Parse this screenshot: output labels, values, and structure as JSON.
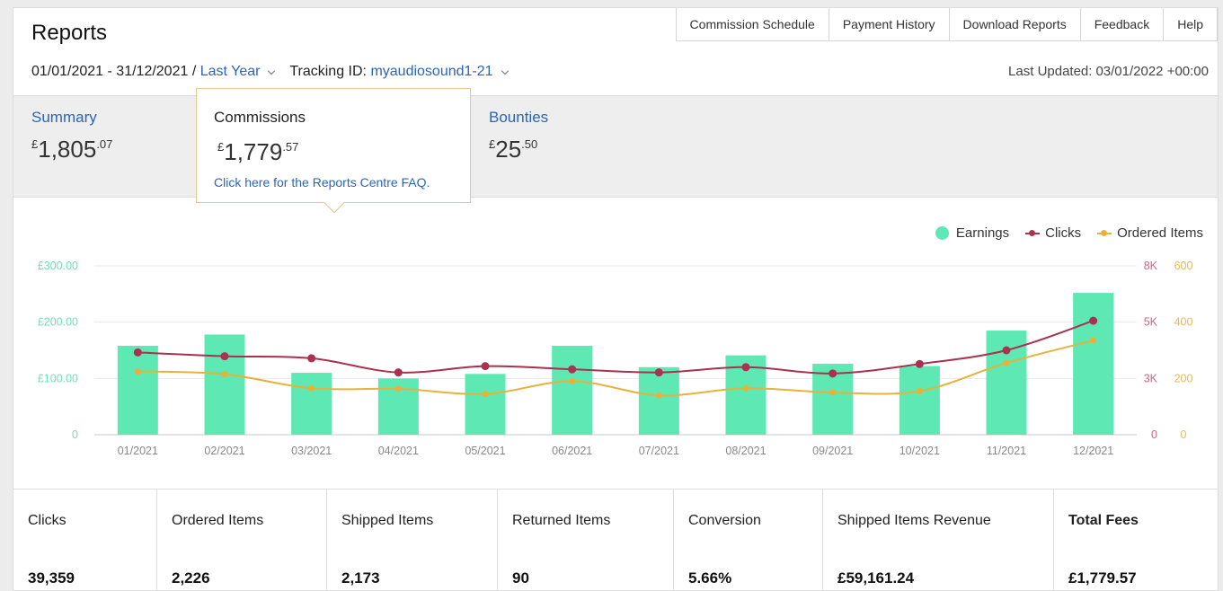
{
  "header": {
    "title": "Reports",
    "nav": [
      "Commission Schedule",
      "Payment History",
      "Download Reports",
      "Feedback",
      "Help"
    ],
    "date_range": "01/01/2021 - 31/12/2021 /",
    "period": "Last Year",
    "tracking_label": "Tracking ID:",
    "tracking_id": "myaudiosound1-21",
    "last_updated_label": "Last Updated:",
    "last_updated_value": "03/01/2022 +00:00"
  },
  "summary": {
    "label": "Summary",
    "currency": "£",
    "whole": "1,805",
    "dec": ".07"
  },
  "commissions": {
    "label": "Commissions",
    "currency": "£",
    "whole": "1,779",
    "dec": ".57",
    "faq_link": "Click here for the Reports Centre FAQ."
  },
  "bounties": {
    "label": "Bounties",
    "currency": "£",
    "whole": "25",
    "dec": ".50"
  },
  "legend": {
    "earnings": "Earnings",
    "clicks": "Clicks",
    "ordered": "Ordered Items"
  },
  "colors": {
    "earnings": "#5ee8b3",
    "clicks": "#a8324f",
    "ordered": "#e8b23a",
    "left_axis": "#6fe0b8",
    "clicks_axis": "#c46a85",
    "ordered_axis": "#e8b85a",
    "link": "#2a66b8"
  },
  "chart_data": {
    "type": "bar",
    "categories": [
      "01/2021",
      "02/2021",
      "03/2021",
      "04/2021",
      "05/2021",
      "06/2021",
      "07/2021",
      "08/2021",
      "09/2021",
      "10/2021",
      "11/2021",
      "12/2021"
    ],
    "left_axis": {
      "ticks": [
        "0",
        "£100.00",
        "£200.00",
        "£300.00"
      ],
      "ylim": [
        0,
        300
      ]
    },
    "clicks_axis": {
      "ticks": [
        "0",
        "3K",
        "5K",
        "8K"
      ],
      "tick_values": [
        0,
        2667,
        5333,
        8000
      ],
      "ylim": [
        0,
        8000
      ]
    },
    "ordered_axis": {
      "ticks": [
        "0",
        "200",
        "400",
        "600"
      ],
      "ylim": [
        0,
        600
      ]
    },
    "series": [
      {
        "name": "Earnings",
        "type": "bar",
        "axis": "left",
        "values": [
          158,
          178,
          110,
          100,
          108,
          158,
          120,
          141,
          126,
          122,
          185,
          252
        ]
      },
      {
        "name": "Clicks",
        "type": "line",
        "axis": "clicks",
        "values": [
          3900,
          3720,
          3620,
          2950,
          3250,
          3100,
          2950,
          3200,
          2900,
          3350,
          4000,
          5400
        ]
      },
      {
        "name": "Ordered Items",
        "type": "line",
        "axis": "ordered",
        "values": [
          225,
          215,
          165,
          163,
          145,
          190,
          140,
          165,
          150,
          155,
          255,
          335
        ]
      }
    ],
    "grid": true,
    "legend_position": "top-right"
  },
  "stats": [
    {
      "label": "Clicks",
      "value": "39,359"
    },
    {
      "label": "Ordered Items",
      "value": "2,226"
    },
    {
      "label": "Shipped Items",
      "value": "2,173"
    },
    {
      "label": "Returned Items",
      "value": "90"
    },
    {
      "label": "Conversion",
      "value": "5.66%"
    },
    {
      "label": "Shipped Items Revenue",
      "value": "£59,161.24"
    },
    {
      "label": "Total Fees",
      "value": "£1,779.57"
    }
  ]
}
